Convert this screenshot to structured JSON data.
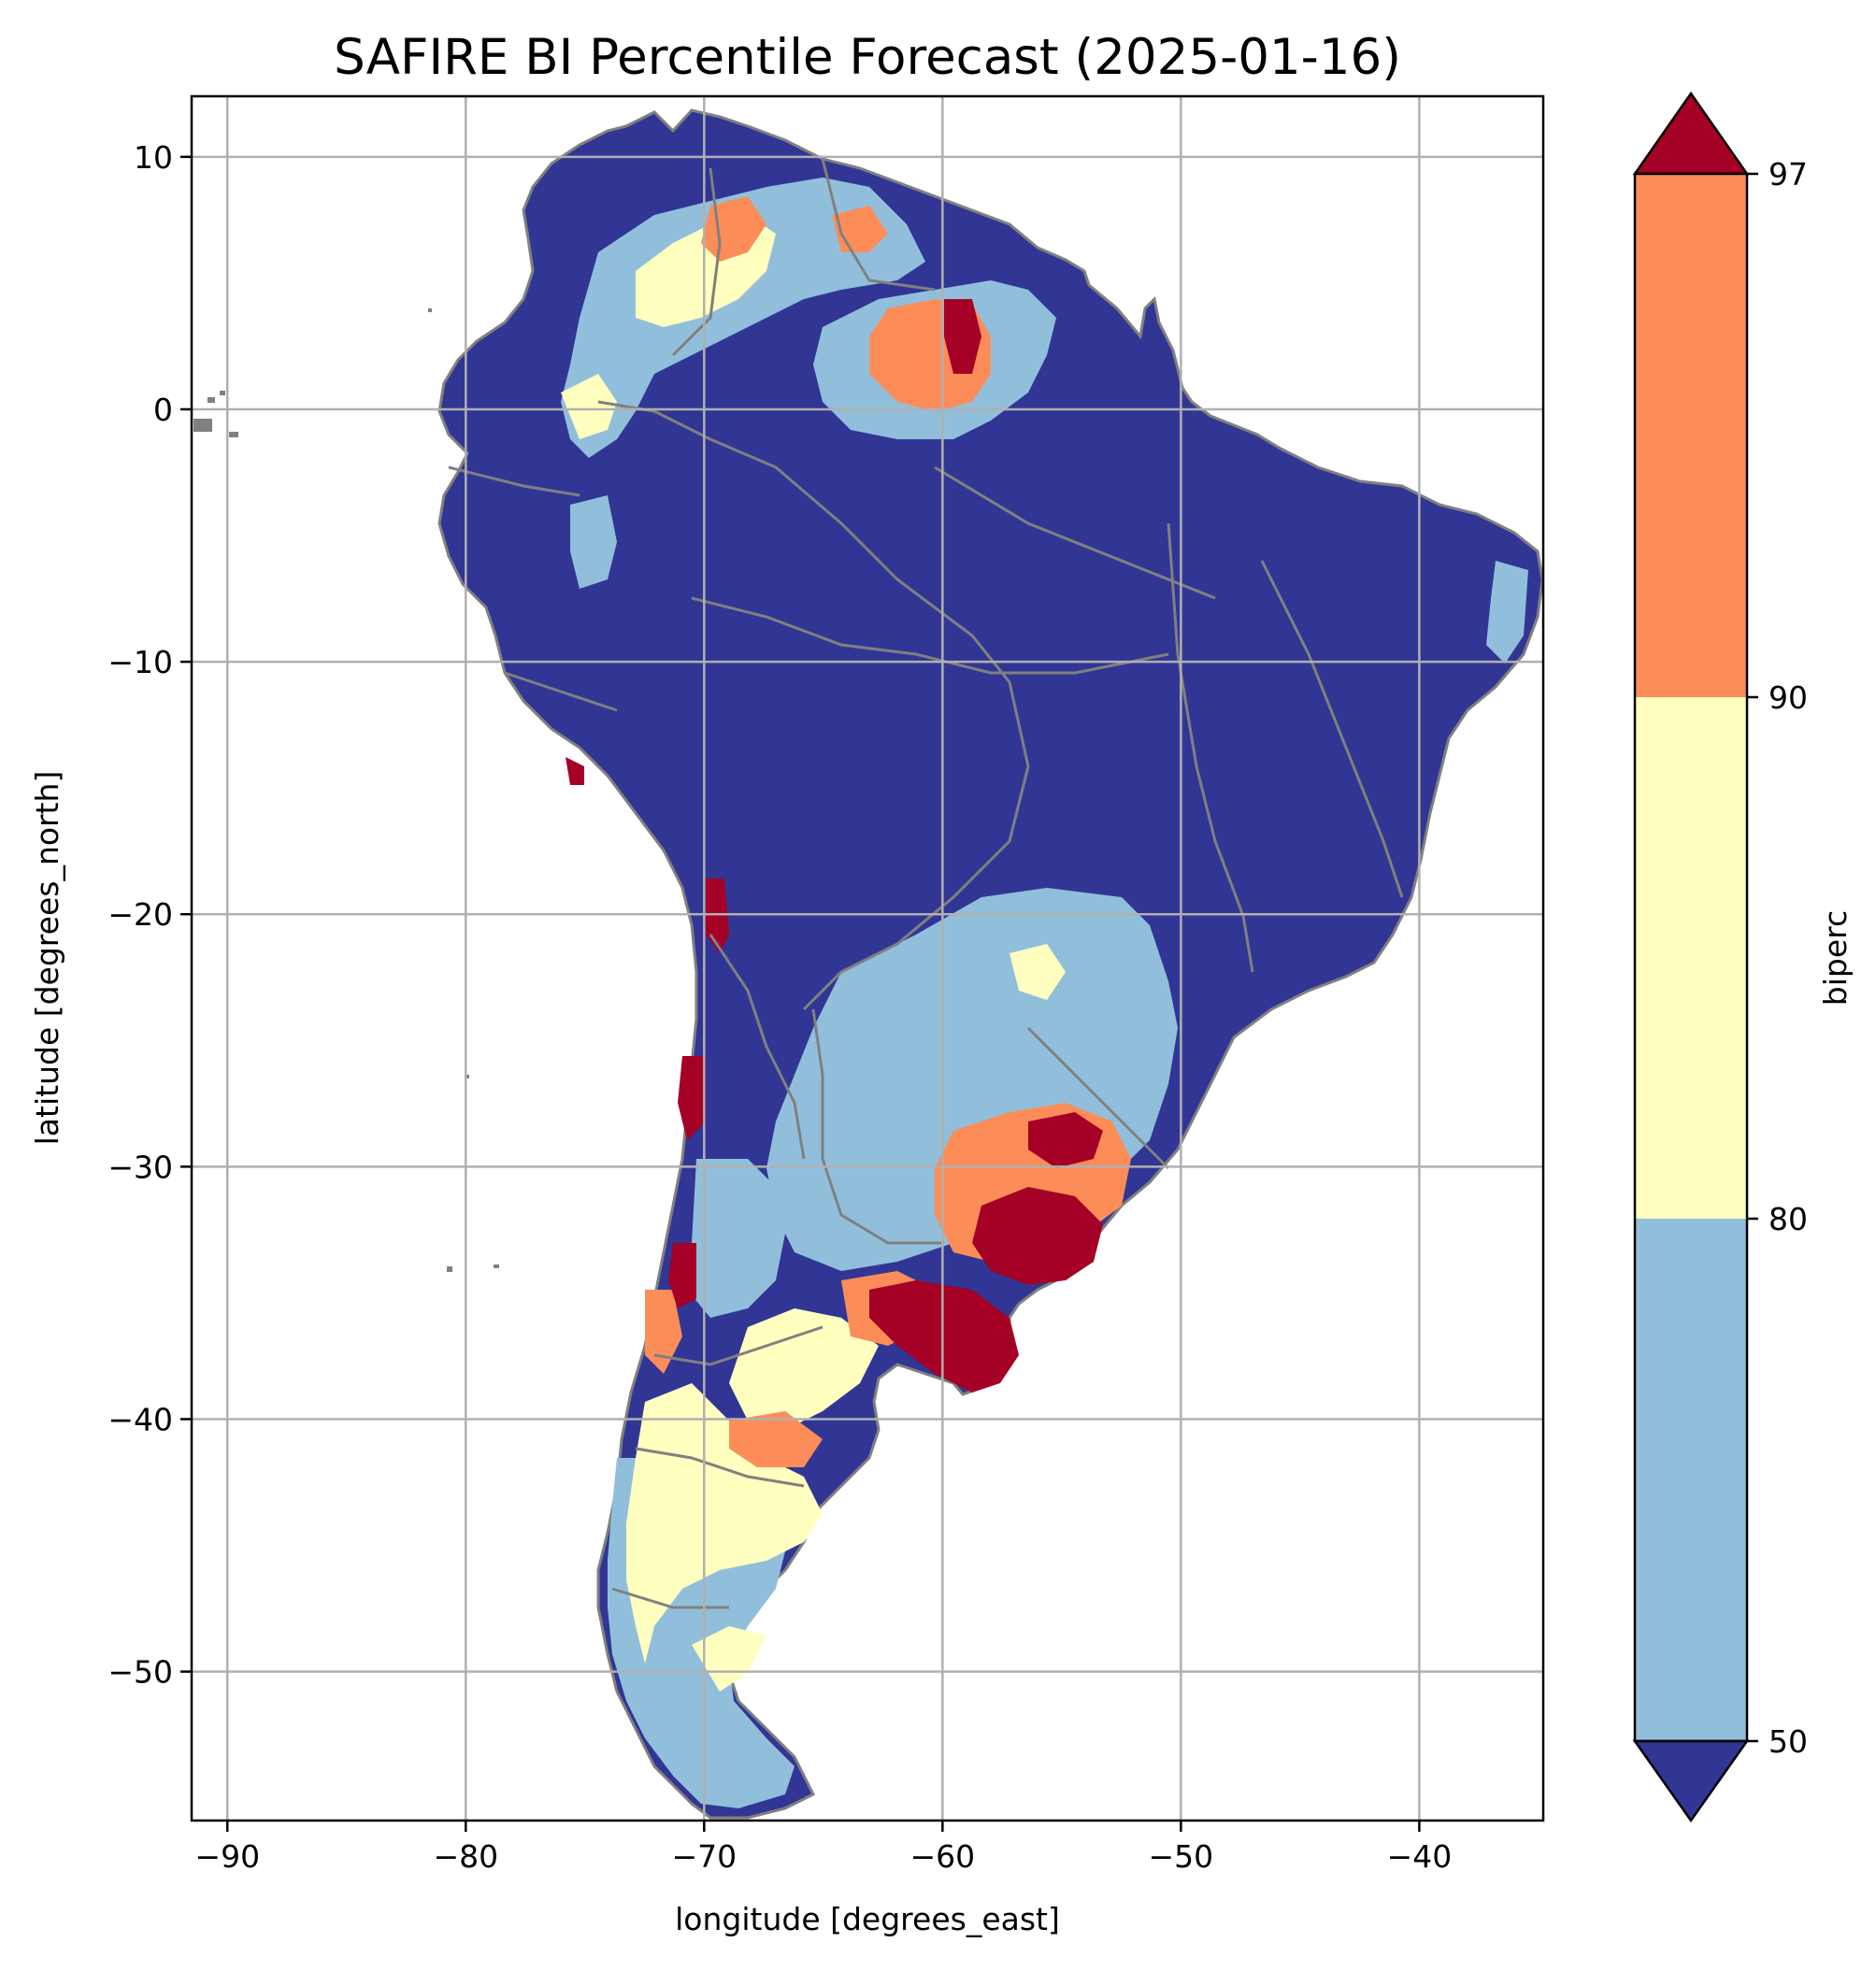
{
  "title": "SAFIRE BI Percentile Forecast (2025-01-16)",
  "map": {
    "xlabel": "longitude [degrees_east]",
    "ylabel": "latitude [degrees_north]",
    "xlim": [
      -91.5,
      -34.8
    ],
    "ylim": [
      -55.9,
      12.4
    ],
    "xticks": [
      -90,
      -80,
      -70,
      -60,
      -50,
      -40
    ],
    "yticks": [
      10,
      0,
      -10,
      -20,
      -30,
      -40,
      -50
    ],
    "xtick_labels": [
      "−90",
      "−80",
      "−70",
      "−60",
      "−50",
      "−40"
    ],
    "ytick_labels": [
      "10",
      "0",
      "−10",
      "−20",
      "−30",
      "−40",
      "−50"
    ],
    "grid": true,
    "border_color": "#808080"
  },
  "colorbar": {
    "label": "biperc",
    "bins": [
      {
        "lo": null,
        "hi": 50,
        "color": "#313695"
      },
      {
        "lo": 50,
        "hi": 80,
        "color": "#91bfdb"
      },
      {
        "lo": 80,
        "hi": 90,
        "color": "#ffffbf"
      },
      {
        "lo": 90,
        "hi": 97,
        "color": "#fc8d59"
      },
      {
        "lo": 97,
        "hi": null,
        "color": "#a50026"
      }
    ],
    "tick_labels": [
      "50",
      "80",
      "90",
      "97"
    ],
    "extend": "both"
  }
}
